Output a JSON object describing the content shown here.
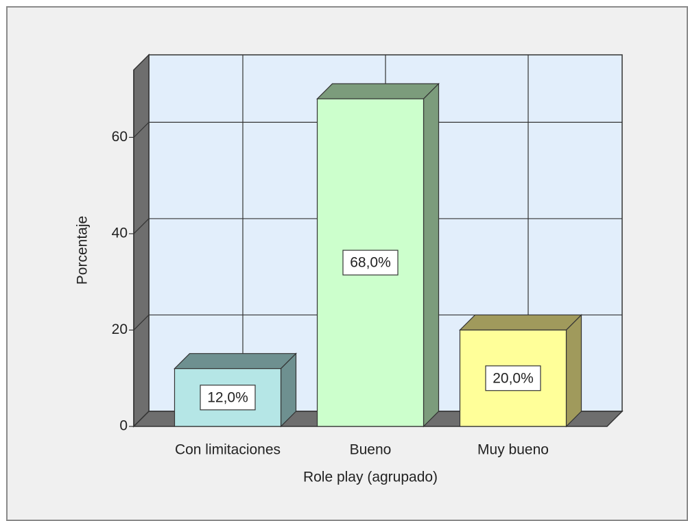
{
  "chart_data": {
    "type": "bar3d",
    "x_label": "Role play  (agrupado)",
    "y_label": "Porcentaje",
    "categories": [
      "Con limitaciones",
      "Bueno",
      "Muy bueno"
    ],
    "values": [
      12,
      68,
      20
    ],
    "value_labels": [
      "12,0%",
      "68,0%",
      "20,0%"
    ],
    "colors": [
      "#b5e6e6",
      "#ccffcc",
      "#ffff99"
    ],
    "shade_colors": [
      "#6e9090",
      "#7c9c7c",
      "#a09a5c"
    ],
    "ylim": [
      0,
      74
    ],
    "yticks": [
      0,
      20,
      40,
      60
    ],
    "grid": true
  }
}
